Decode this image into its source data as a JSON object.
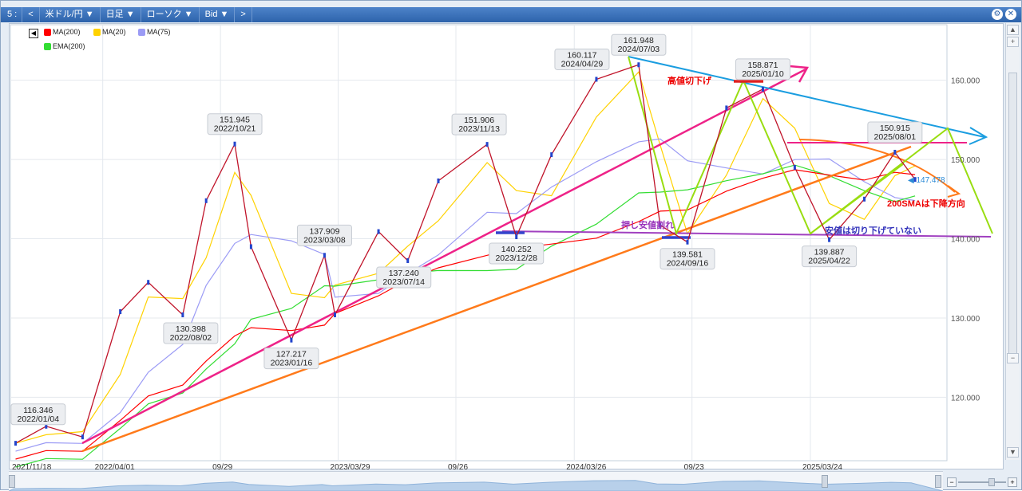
{
  "toolbar": {
    "items": [
      "5 :",
      "<",
      "米ドル/円 ▼",
      "日足 ▼",
      "ローソク ▼",
      "Bid ▼",
      ">"
    ]
  },
  "legend": {
    "items": [
      {
        "label": "MA(200)",
        "color": "#ff0000"
      },
      {
        "label": "MA(20)",
        "color": "#ffd200"
      },
      {
        "label": "MA(75)",
        "color": "#9b9bf5"
      },
      {
        "label": "EMA(200)",
        "color": "#33dd33"
      }
    ]
  },
  "chart_data": {
    "type": "line",
    "y_ticks": [
      "160.000",
      "150.000",
      "140.000",
      "130.000",
      "120.000"
    ],
    "ylim": [
      112,
      167
    ],
    "x_ticks": [
      "2021/11/18",
      "2022/04/01",
      "09/29",
      "2023/03/29",
      "09/26",
      "2024/03/26",
      "09/23",
      "2025/03/24"
    ],
    "current_price": "147.478",
    "points": [
      {
        "x": "2021/11/18",
        "y": 114.2
      },
      {
        "x": "2022/01/04",
        "y": 116.346
      },
      {
        "x": "2022/03/01",
        "y": 115.0
      },
      {
        "x": "2022/04/28",
        "y": 130.8
      },
      {
        "x": "2022/06/10",
        "y": 134.5
      },
      {
        "x": "2022/08/02",
        "y": 130.398
      },
      {
        "x": "2022/09/07",
        "y": 144.8
      },
      {
        "x": "2022/10/21",
        "y": 151.945
      },
      {
        "x": "2022/11/15",
        "y": 139.0
      },
      {
        "x": "2023/01/16",
        "y": 127.217
      },
      {
        "x": "2023/03/08",
        "y": 137.909
      },
      {
        "x": "2023/03/24",
        "y": 130.4
      },
      {
        "x": "2023/05/30",
        "y": 140.9
      },
      {
        "x": "2023/07/14",
        "y": 137.24
      },
      {
        "x": "2023/08/30",
        "y": 147.3
      },
      {
        "x": "2023/11/13",
        "y": 151.906
      },
      {
        "x": "2023/12/28",
        "y": 140.252
      },
      {
        "x": "2024/02/20",
        "y": 150.6
      },
      {
        "x": "2024/04/29",
        "y": 160.117
      },
      {
        "x": "2024/07/03",
        "y": 161.948
      },
      {
        "x": "2024/08/05",
        "y": 141.7
      },
      {
        "x": "2024/09/16",
        "y": 139.581
      },
      {
        "x": "2024/11/15",
        "y": 156.5
      },
      {
        "x": "2025/01/10",
        "y": 158.871
      },
      {
        "x": "2025/02/28",
        "y": 149.0
      },
      {
        "x": "2025/04/22",
        "y": 139.887
      },
      {
        "x": "2025/06/15",
        "y": 145.0
      },
      {
        "x": "2025/08/01",
        "y": 150.915
      },
      {
        "x": "2025/09/01",
        "y": 147.478
      }
    ],
    "price_labels": [
      {
        "price": "116.346",
        "date": "2022/01/04"
      },
      {
        "price": "151.945",
        "date": "2022/10/21"
      },
      {
        "price": "130.398",
        "date": "2022/08/02"
      },
      {
        "price": "127.217",
        "date": "2023/01/16"
      },
      {
        "price": "137.909",
        "date": "2023/03/08"
      },
      {
        "price": "137.240",
        "date": "2023/07/14"
      },
      {
        "price": "151.906",
        "date": "2023/11/13"
      },
      {
        "price": "140.252",
        "date": "2023/12/28"
      },
      {
        "price": "160.117",
        "date": "2024/04/29"
      },
      {
        "price": "161.948",
        "date": "2024/07/03"
      },
      {
        "price": "139.581",
        "date": "2024/09/16"
      },
      {
        "price": "158.871",
        "date": "2025/01/10"
      },
      {
        "price": "139.887",
        "date": "2025/04/22"
      },
      {
        "price": "150.915",
        "date": "2025/08/01"
      }
    ],
    "annotations": [
      {
        "text": "高値切下げ",
        "color": "#ee0000"
      },
      {
        "text": "押し安値割れ",
        "color": "#9933bb"
      },
      {
        "text": "200SMAは下降方向",
        "color": "#ee0000"
      },
      {
        "text": "安値は切り下げていない",
        "color": "#3333bb"
      }
    ]
  }
}
